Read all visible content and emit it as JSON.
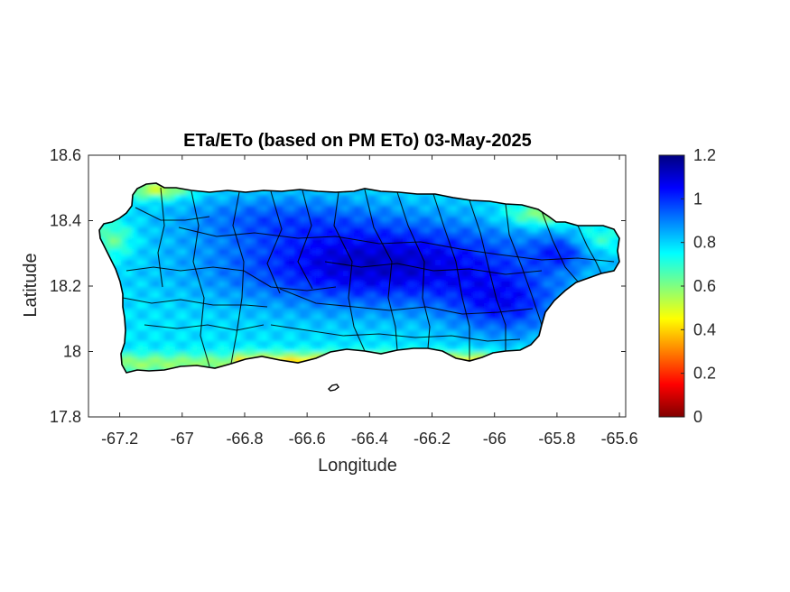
{
  "chart_data": {
    "type": "heatmap",
    "title": "ETa/ETo (based on PM ETo) 03-May-2025",
    "xlabel": "Longitude",
    "ylabel": "Latitude",
    "xlim": [
      -67.3,
      -65.58
    ],
    "ylim": [
      17.8,
      18.6
    ],
    "xticks": [
      "-67.2",
      "-67",
      "-66.8",
      "-66.6",
      "-66.4",
      "-66.2",
      "-66",
      "-65.8",
      "-65.6"
    ],
    "xtick_values": [
      -67.2,
      -67.0,
      -66.8,
      -66.6,
      -66.4,
      -66.2,
      -66.0,
      -65.8,
      -65.6
    ],
    "yticks": [
      "17.8",
      "18",
      "18.2",
      "18.4",
      "18.6"
    ],
    "ytick_values": [
      17.8,
      18.0,
      18.2,
      18.4,
      18.6
    ],
    "colorbar": {
      "min": 0,
      "max": 1.2,
      "ticks": [
        "0",
        "0.2",
        "0.4",
        "0.6",
        "0.8",
        "1",
        "1.2"
      ],
      "tick_values": [
        0,
        0.2,
        0.4,
        0.6,
        0.8,
        1.0,
        1.2
      ],
      "colormap": "jet",
      "colors": [
        "#800000",
        "#ff0000",
        "#ff8000",
        "#ffff00",
        "#80ff80",
        "#00ffff",
        "#0080ff",
        "#0000ff",
        "#000080"
      ]
    },
    "grid": false,
    "outline_color": "#000000"
  }
}
